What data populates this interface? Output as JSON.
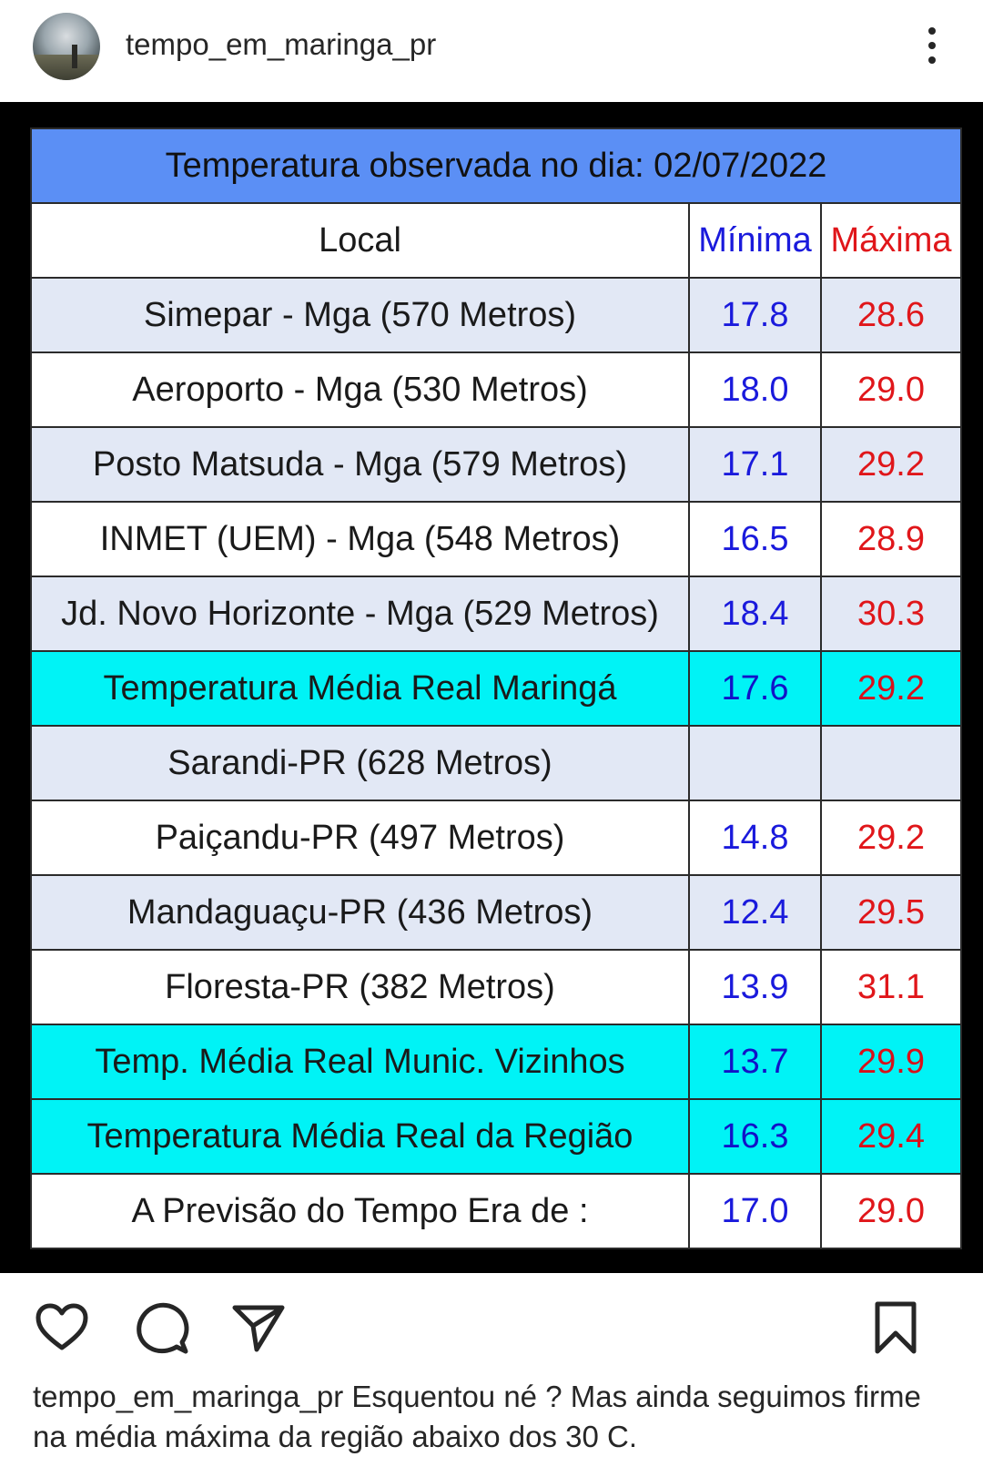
{
  "post": {
    "username": "tempo_em_maringa_pr",
    "caption": "Esquentou né ? Mas ainda seguimos firme na média máxima da região abaixo dos 30 C."
  },
  "icons": {
    "avatar": "profile-avatar",
    "more": "more-vertical-icon",
    "like": "heart-icon",
    "comment": "comment-icon",
    "share": "send-icon",
    "save": "bookmark-icon"
  },
  "colors": {
    "title_bg": "#5b8ff5",
    "highlight_bg": "#00f3f6",
    "min_text": "#1a1adc",
    "max_text": "#e0161a"
  },
  "table": {
    "title": "Temperatura observada no dia: 02/07/2022",
    "headers": {
      "local": "Local",
      "min": "Mínima",
      "max": "Máxima"
    },
    "rows": [
      {
        "local": "Simepar - Mga  (570 Metros)",
        "min": "17.8",
        "max": "28.6",
        "style": "light"
      },
      {
        "local": "Aeroporto - Mga (530 Metros)",
        "min": "18.0",
        "max": "29.0",
        "style": "white"
      },
      {
        "local": "Posto Matsuda - Mga (579 Metros)",
        "min": "17.1",
        "max": "29.2",
        "style": "light"
      },
      {
        "local": "INMET (UEM) - Mga  (548 Metros)",
        "min": "16.5",
        "max": "28.9",
        "style": "white"
      },
      {
        "local": "Jd. Novo Horizonte - Mga (529 Metros)",
        "min": "18.4",
        "max": "30.3",
        "style": "light"
      },
      {
        "local": "Temperatura Média Real Maringá",
        "min": "17.6",
        "max": "29.2",
        "style": "cyan"
      },
      {
        "local": "Sarandi-PR  (628 Metros)",
        "min": "",
        "max": "",
        "style": "light"
      },
      {
        "local": "Paiçandu-PR (497 Metros)",
        "min": "14.8",
        "max": "29.2",
        "style": "white"
      },
      {
        "local": "Mandaguaçu-PR (436 Metros)",
        "min": "12.4",
        "max": "29.5",
        "style": "light"
      },
      {
        "local": "Floresta-PR (382 Metros)",
        "min": "13.9",
        "max": "31.1",
        "style": "white"
      },
      {
        "local": "Temp. Média Real Munic. Vizinhos",
        "min": "13.7",
        "max": "29.9",
        "style": "cyan"
      },
      {
        "local": "Temperatura Média Real da Região",
        "min": "16.3",
        "max": "29.4",
        "style": "cyan"
      },
      {
        "local": "A Previsão do Tempo Era de :",
        "min": "17.0",
        "max": "29.0",
        "style": "white"
      }
    ]
  }
}
